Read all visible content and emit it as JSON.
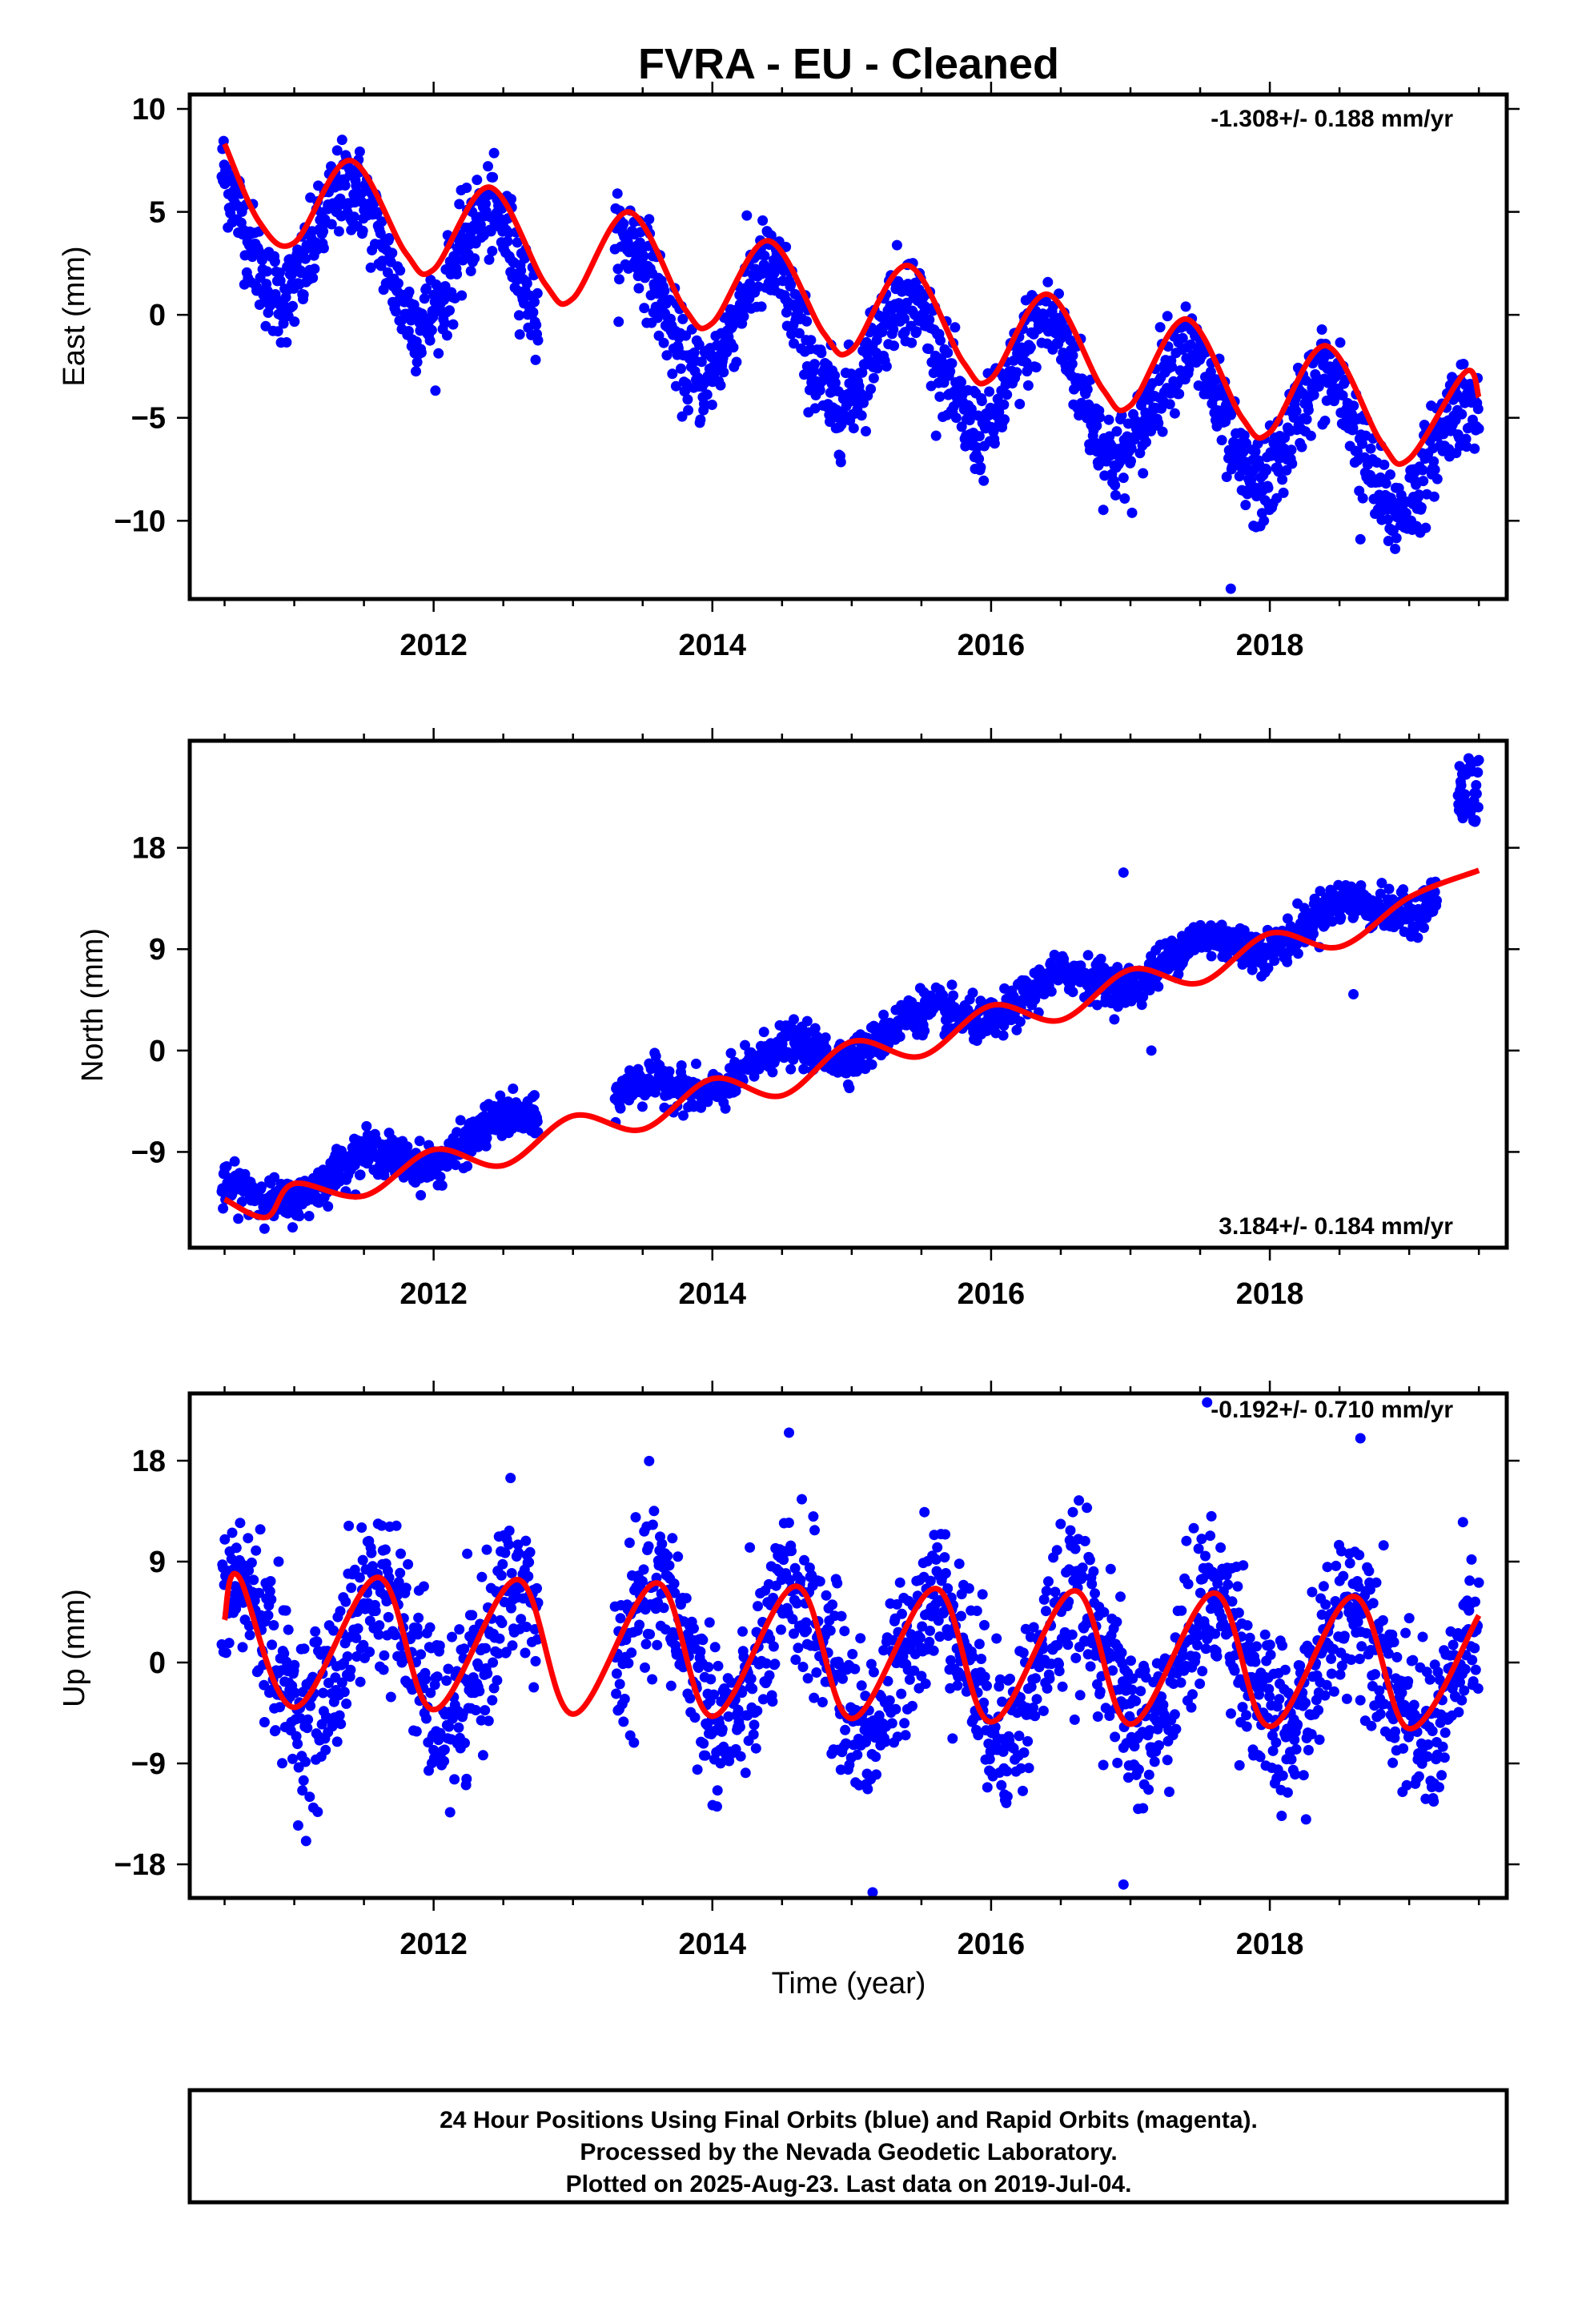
{
  "title": "FVRA  - EU - Cleaned",
  "colors": {
    "data": "#0000ff",
    "model": "#ff0000",
    "frame": "#000000"
  },
  "chart_data": [
    {
      "type": "scatter",
      "name": "east",
      "ylabel": "East (mm)",
      "xlabel": "",
      "rate_text": "-1.308+/- 0.188 mm/yr",
      "rate_position": "top-right",
      "xlim": [
        2010.25,
        2019.7
      ],
      "ylim": [
        -13.8,
        10.7
      ],
      "yticks": [
        10,
        5,
        0,
        -5,
        -10
      ],
      "ytick_labels": [
        "10",
        "5",
        "0",
        "−5",
        "−10"
      ],
      "xticks": [
        2012,
        2014,
        2016,
        2018
      ],
      "xtick_labels": [
        "2012",
        "2014",
        "2016",
        "2018"
      ],
      "trend": {
        "intercept_at_2010_5": 4.4,
        "slope_mm_per_yr": -1.308,
        "annual_amplitude": 3.0,
        "annual_peak_phase_yr": 0.4,
        "scatter_sigma": 1.1
      },
      "model_samples": {
        "x": [
          2010.5,
          2010.75,
          2011.0,
          2011.4,
          2011.8,
          2012.0,
          2012.4,
          2012.8,
          2013.0,
          2013.4,
          2013.8,
          2014.0,
          2014.4,
          2014.8,
          2015.0,
          2015.4,
          2015.8,
          2016.0,
          2016.4,
          2016.8,
          2017.0,
          2017.4,
          2017.8,
          2018.0,
          2018.4,
          2018.8,
          2019.0,
          2019.4,
          2019.5
        ],
        "y": [
          8.3,
          4.5,
          3.5,
          7.5,
          3.0,
          2.2,
          6.2,
          1.5,
          0.8,
          5.0,
          0.3,
          -0.4,
          3.6,
          -0.9,
          -1.7,
          2.4,
          -2.3,
          -3.1,
          1.0,
          -3.6,
          -4.4,
          -0.2,
          -5.0,
          -5.7,
          -1.5,
          -6.2,
          -7.0,
          -2.8,
          -4.0
        ]
      },
      "gaps": [
        [
          2012.75,
          2013.3
        ]
      ],
      "outliers": [
        {
          "x": 2017.72,
          "y": -13.3
        },
        {
          "x": 2018.65,
          "y": -10.9
        }
      ],
      "series": [
        {
          "name": "Final Orbits",
          "color": "#0000ff"
        },
        {
          "name": "Model fit",
          "color": "#ff0000"
        }
      ]
    },
    {
      "type": "scatter",
      "name": "north",
      "ylabel": "North (mm)",
      "xlabel": "",
      "rate_text": "3.184+/- 0.184 mm/yr",
      "rate_position": "bottom-right",
      "xlim": [
        2010.25,
        2019.7
      ],
      "ylim": [
        -17.5,
        27.5
      ],
      "yticks": [
        18,
        9,
        0,
        -9
      ],
      "ytick_labels": [
        "18",
        "9",
        "0",
        "−9"
      ],
      "xticks": [
        2012,
        2014,
        2016,
        2018
      ],
      "xtick_labels": [
        "2012",
        "2014",
        "2016",
        "2018"
      ],
      "trend": {
        "intercept_at_2010_5": -13.6,
        "slope_mm_per_yr": 3.184,
        "annual_amplitude": 1.3,
        "annual_peak_phase_yr": 0.5,
        "scatter_sigma": 0.9
      },
      "model_samples": {
        "x": [
          2010.5,
          2010.8,
          2011.0,
          2011.5,
          2012.0,
          2012.5,
          2013.0,
          2013.5,
          2014.0,
          2014.5,
          2015.0,
          2015.5,
          2016.0,
          2016.5,
          2017.0,
          2017.5,
          2018.0,
          2018.5,
          2019.0,
          2019.5
        ],
        "y": [
          -13.2,
          -14.8,
          -11.8,
          -12.9,
          -8.8,
          -10.2,
          -5.8,
          -7.0,
          -2.5,
          -4.0,
          0.8,
          -0.5,
          4.0,
          2.7,
          7.2,
          6.0,
          10.4,
          9.2,
          13.6,
          16.0
        ]
      },
      "gaps": [
        [
          2012.75,
          2013.3
        ],
        [
          2019.2,
          2019.35
        ]
      ],
      "offset_cluster": {
        "x_range": [
          2019.35,
          2019.5
        ],
        "y_range": [
          20.0,
          26.0
        ]
      },
      "outliers": [
        {
          "x": 2016.95,
          "y": 15.8
        },
        {
          "x": 2017.15,
          "y": 0.0
        },
        {
          "x": 2018.6,
          "y": 5.0
        }
      ],
      "series": [
        {
          "name": "Final Orbits",
          "color": "#0000ff"
        },
        {
          "name": "Model fit",
          "color": "#ff0000"
        }
      ]
    },
    {
      "type": "scatter",
      "name": "up",
      "ylabel": "Up (mm)",
      "xlabel": "Time (year)",
      "rate_text": "-0.192+/- 0.710 mm/yr",
      "rate_position": "top-right",
      "xlim": [
        2010.25,
        2019.7
      ],
      "ylim": [
        -21,
        24
      ],
      "yticks": [
        18,
        9,
        0,
        -9,
        -18
      ],
      "ytick_labels": [
        "18",
        "9",
        "0",
        "−9",
        "−18"
      ],
      "xticks": [
        2012,
        2014,
        2016,
        2018
      ],
      "xtick_labels": [
        "2012",
        "2014",
        "2016",
        "2018"
      ],
      "trend": {
        "intercept_at_2010_5": 1.0,
        "slope_mm_per_yr": -0.192,
        "annual_amplitude": 6.0,
        "annual_peak_phase_yr": 0.6,
        "scatter_sigma": 3.6
      },
      "model_samples": {
        "x": [
          2010.5,
          2010.6,
          2011.0,
          2011.6,
          2012.0,
          2012.6,
          2013.0,
          2013.6,
          2014.0,
          2014.6,
          2015.0,
          2015.6,
          2016.0,
          2016.6,
          2017.0,
          2017.6,
          2018.0,
          2018.6,
          2019.0,
          2019.5
        ],
        "y": [
          3.8,
          7.7,
          -4.0,
          7.6,
          -4.2,
          7.4,
          -4.6,
          7.1,
          -4.8,
          6.8,
          -5.0,
          6.6,
          -5.3,
          6.4,
          -5.5,
          6.2,
          -5.7,
          5.9,
          -5.9,
          4.2
        ]
      },
      "gaps": [
        [
          2012.75,
          2013.3
        ]
      ],
      "outliers": [
        {
          "x": 2015.15,
          "y": -20.5
        },
        {
          "x": 2016.95,
          "y": -19.8
        },
        {
          "x": 2014.55,
          "y": 20.5
        },
        {
          "x": 2017.55,
          "y": 23.2
        },
        {
          "x": 2018.65,
          "y": 20.0
        }
      ],
      "series": [
        {
          "name": "Final Orbits",
          "color": "#0000ff"
        },
        {
          "name": "Model fit",
          "color": "#ff0000"
        }
      ]
    }
  ],
  "footer": {
    "line1": "24 Hour Positions Using Final Orbits (blue) and Rapid Orbits (magenta).",
    "line2": "Processed by the Nevada Geodetic Laboratory.",
    "line3": "Plotted on 2025-Aug-23. Last data on 2019-Jul-04."
  }
}
